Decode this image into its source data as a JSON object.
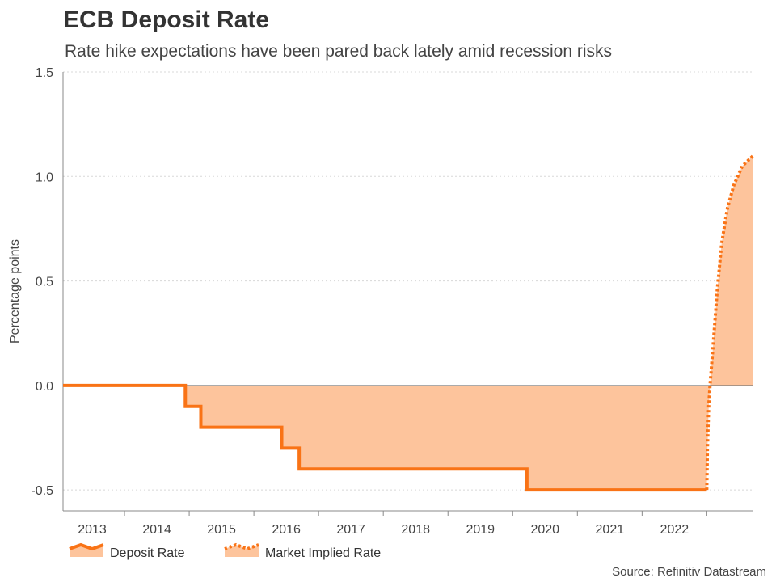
{
  "chart_data": {
    "type": "area",
    "title": "ECB Deposit Rate",
    "subtitle": "Rate hike expectations have been pared back lately amid recession risks",
    "ylabel": "Percentage points",
    "xlabel": "",
    "xlim": [
      2012.55,
      2023.22
    ],
    "ylim": [
      -0.6,
      1.5
    ],
    "yticks": [
      -0.5,
      0.0,
      0.5,
      1.0,
      1.5
    ],
    "ytick_labels": [
      "-0.5",
      "0.0",
      "0.5",
      "1.0",
      "1.5"
    ],
    "xtick_labels": [
      "2013",
      "2014",
      "2015",
      "2016",
      "2017",
      "2018",
      "2019",
      "2020",
      "2021",
      "2022"
    ],
    "xtick_centers": [
      2013.0,
      2014.0,
      2015.0,
      2016.0,
      2017.0,
      2018.0,
      2019.0,
      2020.0,
      2021.0,
      2022.0
    ],
    "year_boundaries": [
      2013.5,
      2014.5,
      2015.5,
      2016.5,
      2017.5,
      2018.5,
      2019.5,
      2020.5,
      2021.5,
      2022.5
    ],
    "grid": true,
    "colors": {
      "line": "#f97316",
      "fill": "#fdc49c",
      "zero_line": "#777777",
      "grid": "#d8d8d8"
    },
    "series": [
      {
        "name": "Deposit Rate",
        "style": "solid",
        "points": [
          [
            2012.55,
            0.0
          ],
          [
            2014.44,
            0.0
          ],
          [
            2014.44,
            -0.1
          ],
          [
            2014.68,
            -0.1
          ],
          [
            2014.68,
            -0.2
          ],
          [
            2015.93,
            -0.2
          ],
          [
            2015.93,
            -0.3
          ],
          [
            2016.2,
            -0.3
          ],
          [
            2016.2,
            -0.4
          ],
          [
            2019.72,
            -0.4
          ],
          [
            2019.72,
            -0.5
          ],
          [
            2022.5,
            -0.5
          ]
        ]
      },
      {
        "name": "Market Implied Rate",
        "style": "dotted",
        "points": [
          [
            2022.5,
            -0.5
          ],
          [
            2022.51,
            -0.3
          ],
          [
            2022.53,
            -0.1
          ],
          [
            2022.55,
            0.0
          ],
          [
            2022.6,
            0.2
          ],
          [
            2022.66,
            0.45
          ],
          [
            2022.73,
            0.68
          ],
          [
            2022.82,
            0.85
          ],
          [
            2022.92,
            0.96
          ],
          [
            2023.05,
            1.05
          ],
          [
            2023.22,
            1.1
          ]
        ]
      }
    ],
    "legend": {
      "position": "bottom-left",
      "entries": [
        "Deposit Rate",
        "Market Implied Rate"
      ]
    },
    "source": "Source: Refinitiv Datastream"
  }
}
